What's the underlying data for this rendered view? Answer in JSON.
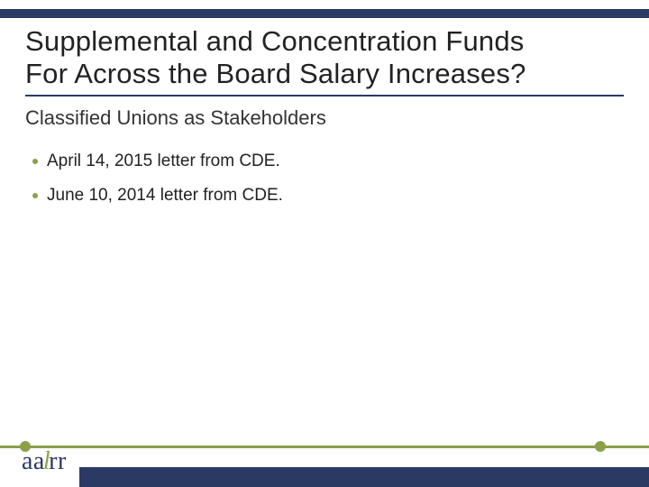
{
  "title": {
    "line1": "Supplemental and Concentration Funds",
    "line2": "For Across the Board Salary Increases?",
    "fontsize": 31,
    "color": "#222222"
  },
  "subtitle": {
    "text": "Classified Unions as Stakeholders",
    "fontsize": 22,
    "color": "#333333"
  },
  "bullets": [
    "April 14, 2015 letter from CDE.",
    "June 10, 2014 letter from CDE."
  ],
  "styling": {
    "topbar_color": "#2b3a63",
    "title_underline_color": "#2b3a63",
    "bullet_color": "#8aa14a",
    "bullet_fontsize": 19,
    "footer_line_color": "#8aa14a",
    "footer_dot_color": "#8aa14a",
    "footer_band_color": "#2b3a63",
    "logo_navy": "#2b3a63",
    "logo_olive": "#8aa14a",
    "background": "#ffffff"
  },
  "logo": {
    "aa": "aa",
    "l": "l",
    "rr": "rr"
  }
}
